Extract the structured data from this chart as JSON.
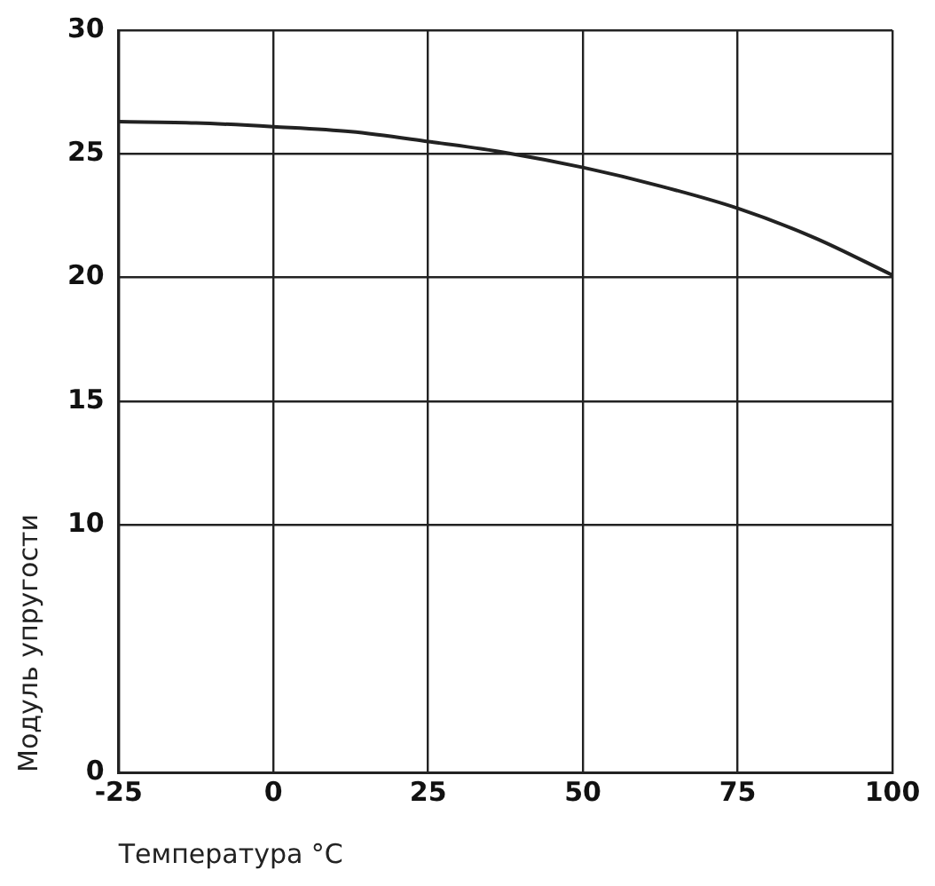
{
  "chart_data": {
    "type": "line",
    "xlabel": "Температура °C",
    "ylabel": "Модуль упругости",
    "x": [
      -25,
      -12.5,
      0,
      12.5,
      25,
      37.5,
      50,
      62.5,
      75,
      87.5,
      100
    ],
    "series": [
      {
        "color": "#222222",
        "values": [
          26.3,
          26.25,
          26.1,
          25.9,
          25.5,
          25.05,
          24.45,
          23.7,
          22.8,
          21.6,
          20.1
        ]
      }
    ],
    "xlim": [
      -25,
      100
    ],
    "xticks": [
      -25,
      0,
      25,
      50,
      75,
      100
    ],
    "ylim": [
      0,
      30
    ],
    "yticks": [
      0,
      10,
      15,
      20,
      25,
      30
    ],
    "grid": true,
    "legend": false,
    "marker": "none",
    "line_style": "solid"
  }
}
